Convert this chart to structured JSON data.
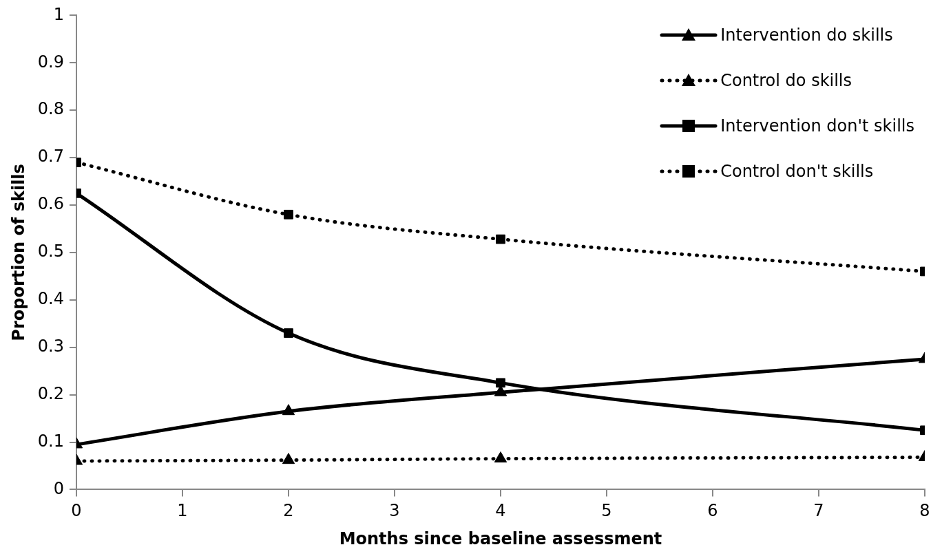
{
  "chart_data": {
    "type": "line",
    "xlabel": "Months since baseline assessment",
    "ylabel": "Proportion of skills",
    "x": [
      0,
      2,
      4,
      8
    ],
    "xlim": [
      0,
      8
    ],
    "xticks": [
      0,
      1,
      2,
      3,
      4,
      5,
      6,
      7,
      8
    ],
    "ylim": [
      0,
      1
    ],
    "yticks": [
      0,
      0.1,
      0.2,
      0.3,
      0.4,
      0.5,
      0.6,
      0.7,
      0.8,
      0.9,
      1
    ],
    "legend": "top right",
    "series": [
      {
        "name": "Intervention do skills",
        "color": "#000000",
        "marker": "triangle",
        "line_style": "solid",
        "values": [
          0.095,
          0.165,
          0.205,
          0.275
        ]
      },
      {
        "name": "Control do skills",
        "color": "#000000",
        "marker": "triangle",
        "line_style": "dotted",
        "values": [
          0.06,
          0.062,
          0.065,
          0.068
        ]
      },
      {
        "name": "Intervention don't skills",
        "color": "#000000",
        "marker": "square",
        "line_style": "solid",
        "values": [
          0.625,
          0.33,
          0.225,
          0.125
        ]
      },
      {
        "name": "Control don't skills",
        "color": "#000000",
        "marker": "square",
        "line_style": "dotted",
        "values": [
          0.69,
          0.58,
          0.528,
          0.46
        ]
      }
    ]
  }
}
